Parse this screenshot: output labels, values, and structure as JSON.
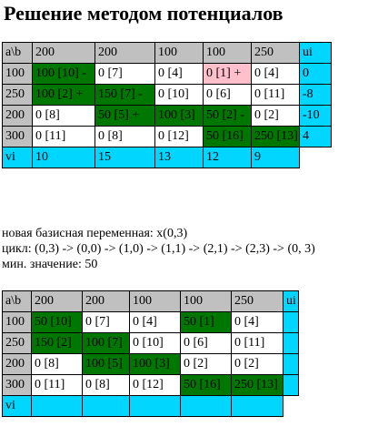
{
  "title": "Решение методом потенциалов",
  "colors": {
    "header_gray": "#c0c0c0",
    "potential_cyan": "#00d6ff",
    "basis_green": "#007700",
    "cycle_pink": "#ffc0cb",
    "plain_white": "#ffffff"
  },
  "table1": {
    "corner": "a\\b",
    "demand": [
      "200",
      "200",
      "100",
      "100",
      "250"
    ],
    "ui_header": "ui",
    "rows": [
      {
        "supply": "100",
        "cells": [
          {
            "text": "100 [10] -",
            "style": "basis"
          },
          {
            "text": "0 [7]",
            "style": "plain"
          },
          {
            "text": "0 [4]",
            "style": "plain"
          },
          {
            "text": "0 [1] +",
            "style": "cycle"
          },
          {
            "text": "0 [4]",
            "style": "plain"
          }
        ],
        "ui": "0"
      },
      {
        "supply": "250",
        "cells": [
          {
            "text": "100 [2] +",
            "style": "basis"
          },
          {
            "text": "150 [7] -",
            "style": "basis"
          },
          {
            "text": "0 [10]",
            "style": "plain"
          },
          {
            "text": "0 [6]",
            "style": "plain"
          },
          {
            "text": "0 [11]",
            "style": "plain"
          }
        ],
        "ui": "-8"
      },
      {
        "supply": "200",
        "cells": [
          {
            "text": "0 [8]",
            "style": "plain"
          },
          {
            "text": "50 [5] +",
            "style": "basis"
          },
          {
            "text": "100 [3]",
            "style": "basis"
          },
          {
            "text": "50 [2] -",
            "style": "basis"
          },
          {
            "text": "0 [2]",
            "style": "plain"
          }
        ],
        "ui": "-10"
      },
      {
        "supply": "300",
        "cells": [
          {
            "text": "0 [11]",
            "style": "plain"
          },
          {
            "text": "0 [8]",
            "style": "plain"
          },
          {
            "text": "0 [12]",
            "style": "plain"
          },
          {
            "text": "50 [16]",
            "style": "basis"
          },
          {
            "text": "250 [13]",
            "style": "basis"
          }
        ],
        "ui": "4"
      }
    ],
    "vi_label": "vi",
    "vi": [
      "10",
      "15",
      "13",
      "12",
      "9"
    ]
  },
  "info": {
    "new_variable": "новая базисная переменная: x(0,3)",
    "cycle": "цикл: (0,3) -> (0,0) -> (1,0) -> (1,1) -> (2,1) -> (2,3) -> (0, 3)",
    "min_value": "мин. значение: 50"
  },
  "table2": {
    "corner": "a\\b",
    "demand": [
      "200",
      "200",
      "100",
      "100",
      "250"
    ],
    "ui_header": "ui",
    "rows": [
      {
        "supply": "100",
        "cells": [
          {
            "text": "50 [10]",
            "style": "basis"
          },
          {
            "text": "0 [7]",
            "style": "plain"
          },
          {
            "text": "0 [4]",
            "style": "plain"
          },
          {
            "text": "50 [1]",
            "style": "basis"
          },
          {
            "text": "0 [4]",
            "style": "plain"
          }
        ],
        "ui": ""
      },
      {
        "supply": "250",
        "cells": [
          {
            "text": "150 [2]",
            "style": "basis"
          },
          {
            "text": "100 [7]",
            "style": "basis"
          },
          {
            "text": "0 [10]",
            "style": "plain"
          },
          {
            "text": "0 [6]",
            "style": "plain"
          },
          {
            "text": "0 [11]",
            "style": "plain"
          }
        ],
        "ui": ""
      },
      {
        "supply": "200",
        "cells": [
          {
            "text": "0 [8]",
            "style": "plain"
          },
          {
            "text": "100 [5]",
            "style": "basis"
          },
          {
            "text": "100 [3]",
            "style": "basis"
          },
          {
            "text": "0 [2]",
            "style": "plain"
          },
          {
            "text": "0 [2]",
            "style": "plain"
          }
        ],
        "ui": ""
      },
      {
        "supply": "300",
        "cells": [
          {
            "text": "0 [11]",
            "style": "plain"
          },
          {
            "text": "0 [8]",
            "style": "plain"
          },
          {
            "text": "0 [12]",
            "style": "plain"
          },
          {
            "text": "50 [16]",
            "style": "basis"
          },
          {
            "text": "250 [13]",
            "style": "basis"
          }
        ],
        "ui": ""
      }
    ],
    "vi_label": "vi",
    "vi": [
      "",
      "",
      "",
      "",
      ""
    ]
  }
}
